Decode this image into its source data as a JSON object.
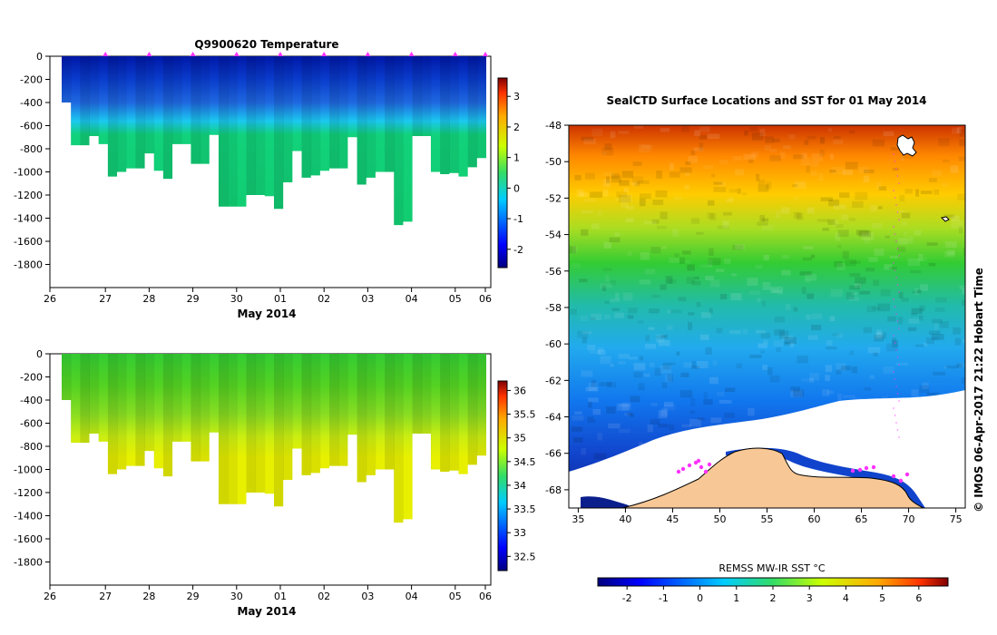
{
  "colors": {
    "land": "#f7c896",
    "deep_blue": "#0a1f8c",
    "marker": "#ff33ff"
  },
  "chart_data": [
    {
      "type": "heatmap",
      "title": "Q9900620  Temperature",
      "xlabel": "May 2014",
      "ylabel": "",
      "x_ticks": [
        "26",
        "27",
        "28",
        "29",
        "30",
        "01",
        "02",
        "03",
        "04",
        "05",
        "06"
      ],
      "x_range_days": [
        0,
        10
      ],
      "y_ticks": [
        0,
        -200,
        -400,
        -600,
        -800,
        -1000,
        -1200,
        -1400,
        -1600,
        -1800
      ],
      "ylim": [
        -2000,
        0
      ],
      "colorbar": {
        "min": -2.6,
        "max": 3.6,
        "ticks": [
          3,
          2,
          1,
          0,
          -1,
          -2
        ]
      },
      "profile_max_depth": [
        -400,
        -770,
        -770,
        -690,
        -760,
        -1040,
        -1000,
        -970,
        -970,
        -840,
        -990,
        -1060,
        -760,
        -760,
        -930,
        -930,
        -680,
        -1300,
        -1300,
        -1300,
        -1200,
        -1200,
        -1210,
        -1320,
        -1090,
        -820,
        -1050,
        -1030,
        -990,
        -970,
        -970,
        -700,
        -1110,
        -1050,
        -1000,
        -1000,
        -1460,
        -1430,
        -690,
        -690,
        -1000,
        -1020,
        -1010,
        -1040,
        -960,
        -880
      ],
      "markers_days": [
        1,
        2,
        3,
        4,
        5,
        6,
        7,
        8,
        9,
        10
      ]
    },
    {
      "type": "heatmap",
      "title": "",
      "xlabel": "May 2014",
      "ylabel": "",
      "x_ticks": [
        "26",
        "27",
        "28",
        "29",
        "30",
        "01",
        "02",
        "03",
        "04",
        "05",
        "06"
      ],
      "y_ticks": [
        0,
        -200,
        -400,
        -600,
        -800,
        -1000,
        -1200,
        -1400,
        -1600,
        -1800
      ],
      "ylim": [
        -2000,
        0
      ],
      "colorbar": {
        "min": 32.2,
        "max": 36.2,
        "ticks": [
          36,
          35.5,
          35,
          34.5,
          34,
          33.5,
          33,
          32.5
        ]
      }
    },
    {
      "type": "heatmap",
      "title": "SealCTD Surface Locations and SST for 01 May 2014",
      "x_ticks": [
        "35",
        "40",
        "45",
        "50",
        "55",
        "60",
        "65",
        "70",
        "75"
      ],
      "xlim": [
        34,
        76
      ],
      "y_ticks": [
        "-48",
        "-50",
        "-52",
        "-54",
        "-56",
        "-58",
        "-60",
        "-62",
        "-64",
        "-66",
        "-68"
      ],
      "ylim": [
        -69,
        -48
      ],
      "side_label": "© IMOS 06-Apr-2017 21:22 Hobart Time",
      "colorbar": {
        "label": "REMSS MW-IR SST °C",
        "min": -2.8,
        "max": 6.8,
        "ticks": [
          "-2",
          "-1",
          "0",
          "1",
          "2",
          "3",
          "4",
          "5",
          "6"
        ]
      }
    }
  ]
}
